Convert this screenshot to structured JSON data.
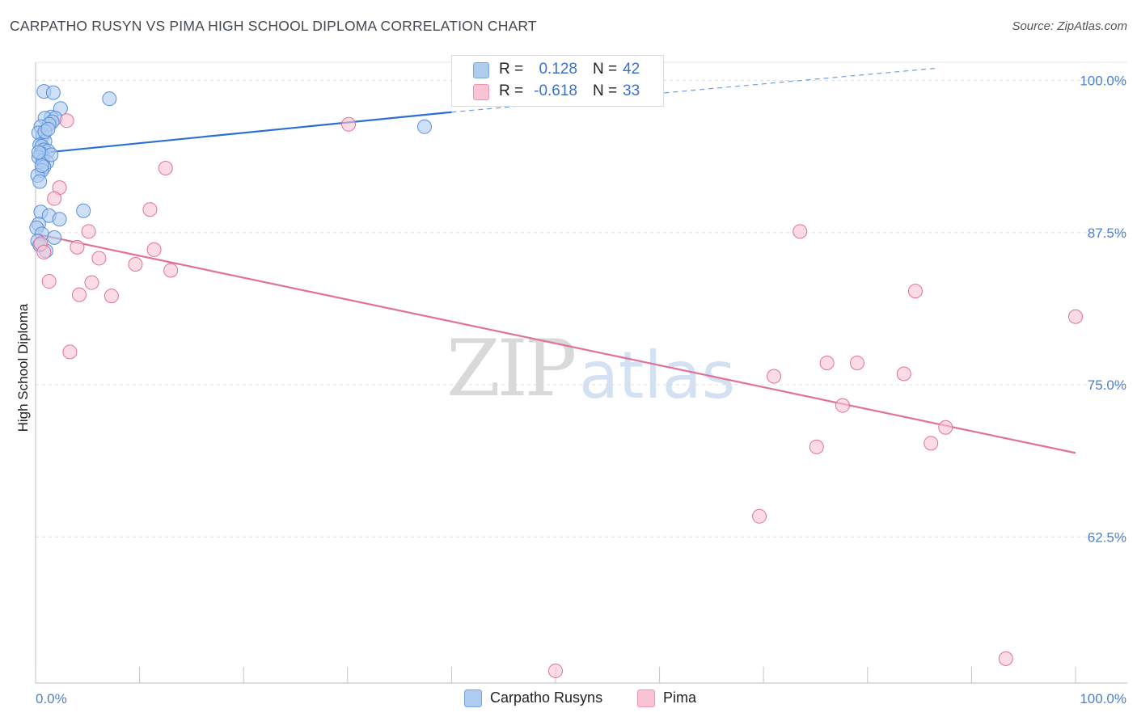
{
  "title": "CARPATHO RUSYN VS PIMA HIGH SCHOOL DIPLOMA CORRELATION CHART",
  "source": "Source: ZipAtlas.com",
  "watermark": {
    "zip": "ZIP",
    "atlas": "atlas"
  },
  "legend": {
    "rows": [
      {
        "r_label": "R =",
        "r_value": "0.128",
        "n_label": "N =",
        "n_value": "42",
        "color": "#aecbf0",
        "border": "#7aa6e0"
      },
      {
        "r_label": "R =",
        "r_value": "-0.618",
        "n_label": "N =",
        "n_value": "33",
        "color": "#f9c4d3",
        "border": "#ee95b0"
      }
    ]
  },
  "bottom_legend": [
    {
      "label": "Carpatho Rusyns",
      "color": "#aecbf0",
      "border": "#7aa6e0"
    },
    {
      "label": "Pima",
      "color": "#f9c4d3",
      "border": "#ee95b0"
    }
  ],
  "chart_data": {
    "type": "scatter",
    "title": "CARPATHO RUSYN VS PIMA HIGH SCHOOL DIPLOMA CORRELATION CHART",
    "xlabel": "",
    "ylabel": "High School Diploma",
    "xlim": [
      0,
      100
    ],
    "ylim": [
      50.5,
      101.5
    ],
    "x_tick_labels": [
      {
        "value": 0,
        "label": "0.0%"
      },
      {
        "value": 100,
        "label": "100.0%"
      }
    ],
    "y_ticks": [
      {
        "value": 100,
        "label": "100.0%"
      },
      {
        "value": 87.5,
        "label": "87.5%"
      },
      {
        "value": 75,
        "label": "75.0%"
      },
      {
        "value": 62.5,
        "label": "62.5%"
      }
    ],
    "series": [
      {
        "name": "Carpatho Rusyns",
        "color": "#5b8fd9",
        "fill": "#aecbf0",
        "points": [
          [
            0.8,
            99.1
          ],
          [
            1.7,
            99.0
          ],
          [
            7.1,
            98.5
          ],
          [
            2.4,
            97.7
          ],
          [
            1.5,
            97.0
          ],
          [
            0.9,
            96.9
          ],
          [
            1.9,
            96.9
          ],
          [
            1.6,
            96.6
          ],
          [
            1.3,
            96.4
          ],
          [
            0.5,
            96.2
          ],
          [
            37.4,
            96.2
          ],
          [
            0.7,
            95.5
          ],
          [
            0.3,
            95.7
          ],
          [
            0.9,
            95.0
          ],
          [
            0.4,
            94.7
          ],
          [
            0.6,
            94.6
          ],
          [
            0.8,
            94.3
          ],
          [
            1.2,
            94.2
          ],
          [
            0.5,
            94.0
          ],
          [
            0.3,
            93.7
          ],
          [
            0.7,
            93.4
          ],
          [
            1.1,
            93.3
          ],
          [
            0.8,
            92.9
          ],
          [
            0.6,
            92.6
          ],
          [
            0.2,
            92.2
          ],
          [
            0.4,
            91.7
          ],
          [
            0.5,
            89.2
          ],
          [
            4.6,
            89.3
          ],
          [
            1.3,
            88.9
          ],
          [
            2.3,
            88.6
          ],
          [
            0.3,
            88.2
          ],
          [
            0.1,
            87.9
          ],
          [
            0.6,
            87.4
          ],
          [
            1.8,
            87.1
          ],
          [
            1.0,
            86.0
          ],
          [
            0.2,
            86.8
          ],
          [
            0.4,
            86.5
          ],
          [
            1.5,
            93.9
          ],
          [
            0.9,
            95.8
          ],
          [
            1.2,
            96.0
          ],
          [
            0.3,
            94.1
          ],
          [
            0.6,
            93.0
          ]
        ],
        "trend": {
          "x0": 0,
          "y0": 94.0,
          "x1": 40,
          "y1": 97.4,
          "dash_to_x": 86.5,
          "dash_to_y": 101.0
        }
      },
      {
        "name": "Pima",
        "color": "#e66f97",
        "fill": "#f9c4d3",
        "points": [
          [
            3.0,
            96.7
          ],
          [
            30.1,
            96.4
          ],
          [
            12.5,
            92.8
          ],
          [
            2.3,
            91.2
          ],
          [
            1.8,
            90.3
          ],
          [
            11.0,
            89.4
          ],
          [
            5.1,
            87.6
          ],
          [
            0.5,
            86.6
          ],
          [
            0.8,
            85.9
          ],
          [
            4.0,
            86.3
          ],
          [
            11.4,
            86.1
          ],
          [
            6.1,
            85.4
          ],
          [
            9.6,
            84.9
          ],
          [
            13.0,
            84.4
          ],
          [
            1.3,
            83.5
          ],
          [
            5.4,
            83.4
          ],
          [
            4.2,
            82.4
          ],
          [
            7.3,
            82.3
          ],
          [
            3.3,
            77.7
          ],
          [
            73.5,
            87.6
          ],
          [
            84.6,
            82.7
          ],
          [
            100.0,
            80.6
          ],
          [
            76.1,
            76.8
          ],
          [
            79.0,
            76.8
          ],
          [
            71.0,
            75.7
          ],
          [
            83.5,
            75.9
          ],
          [
            77.6,
            73.3
          ],
          [
            87.5,
            71.5
          ],
          [
            75.1,
            69.9
          ],
          [
            86.1,
            70.2
          ],
          [
            69.6,
            64.2
          ],
          [
            50.0,
            51.5
          ],
          [
            93.3,
            52.5
          ]
        ],
        "trend": {
          "x0": 0,
          "y0": 87.4,
          "x1": 100,
          "y1": 69.4
        }
      }
    ]
  }
}
